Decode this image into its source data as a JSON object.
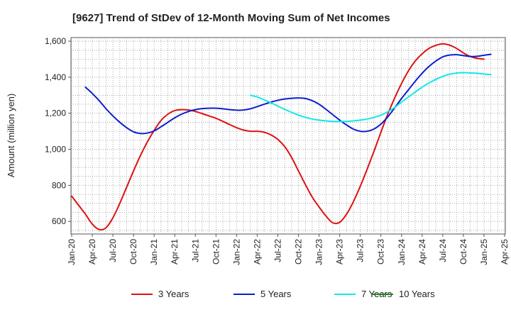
{
  "chart_data": {
    "type": "line",
    "title": "[9627]  Trend of StDev of 12-Month Moving Sum of Net Incomes",
    "ylabel": "Amount (million yen)",
    "xlabel": "",
    "ylim": [
      530,
      1620
    ],
    "yticks": [
      600,
      800,
      1000,
      1200,
      1400,
      1600
    ],
    "ytick_labels": [
      "600",
      "800",
      "1,000",
      "1,200",
      "1,400",
      "1,600"
    ],
    "xticks": [
      "Jan-20",
      "Apr-20",
      "Jul-20",
      "Oct-20",
      "Jan-21",
      "Apr-21",
      "Jul-21",
      "Oct-21",
      "Jan-22",
      "Apr-22",
      "Jul-22",
      "Oct-22",
      "Jan-23",
      "Apr-23",
      "Jul-23",
      "Oct-23",
      "Jan-24",
      "Apr-24",
      "Jul-24",
      "Oct-24",
      "Jan-25",
      "Apr-25"
    ],
    "grid": true,
    "legend_position": "bottom",
    "series": [
      {
        "name": "3 Years",
        "color": "#dd1111",
        "points": [
          [
            "2020-01",
            740
          ],
          [
            "2020-02",
            690
          ],
          [
            "2020-03",
            640
          ],
          [
            "2020-04",
            585
          ],
          [
            "2020-05",
            555
          ],
          [
            "2020-06",
            565
          ],
          [
            "2020-07",
            620
          ],
          [
            "2020-08",
            700
          ],
          [
            "2020-09",
            790
          ],
          [
            "2020-10",
            880
          ],
          [
            "2020-11",
            965
          ],
          [
            "2020-12",
            1040
          ],
          [
            "2021-01",
            1105
          ],
          [
            "2021-02",
            1160
          ],
          [
            "2021-03",
            1195
          ],
          [
            "2021-04",
            1215
          ],
          [
            "2021-05",
            1220
          ],
          [
            "2021-06",
            1218
          ],
          [
            "2021-07",
            1210
          ],
          [
            "2021-08",
            1198
          ],
          [
            "2021-09",
            1185
          ],
          [
            "2021-10",
            1172
          ],
          [
            "2021-11",
            1155
          ],
          [
            "2021-12",
            1137
          ],
          [
            "2022-01",
            1120
          ],
          [
            "2022-02",
            1107
          ],
          [
            "2022-03",
            1100
          ],
          [
            "2022-04",
            1100
          ],
          [
            "2022-05",
            1095
          ],
          [
            "2022-06",
            1080
          ],
          [
            "2022-07",
            1055
          ],
          [
            "2022-08",
            1015
          ],
          [
            "2022-09",
            955
          ],
          [
            "2022-10",
            880
          ],
          [
            "2022-11",
            805
          ],
          [
            "2022-12",
            735
          ],
          [
            "2023-01",
            680
          ],
          [
            "2023-02",
            630
          ],
          [
            "2023-03",
            592
          ],
          [
            "2023-04",
            595
          ],
          [
            "2023-05",
            640
          ],
          [
            "2023-06",
            710
          ],
          [
            "2023-07",
            795
          ],
          [
            "2023-08",
            890
          ],
          [
            "2023-09",
            990
          ],
          [
            "2023-10",
            1095
          ],
          [
            "2023-11",
            1195
          ],
          [
            "2023-12",
            1285
          ],
          [
            "2024-01",
            1365
          ],
          [
            "2024-02",
            1435
          ],
          [
            "2024-03",
            1490
          ],
          [
            "2024-04",
            1530
          ],
          [
            "2024-05",
            1560
          ],
          [
            "2024-06",
            1577
          ],
          [
            "2024-07",
            1585
          ],
          [
            "2024-08",
            1578
          ],
          [
            "2024-09",
            1560
          ],
          [
            "2024-10",
            1535
          ],
          [
            "2024-11",
            1515
          ],
          [
            "2024-12",
            1505
          ],
          [
            "2025-01",
            1500
          ]
        ]
      },
      {
        "name": "5 Years",
        "color": "#0b1fcc",
        "points": [
          [
            "2020-03",
            1345
          ],
          [
            "2020-04",
            1310
          ],
          [
            "2020-05",
            1270
          ],
          [
            "2020-06",
            1225
          ],
          [
            "2020-07",
            1185
          ],
          [
            "2020-08",
            1150
          ],
          [
            "2020-09",
            1120
          ],
          [
            "2020-10",
            1097
          ],
          [
            "2020-11",
            1088
          ],
          [
            "2020-12",
            1090
          ],
          [
            "2021-01",
            1102
          ],
          [
            "2021-02",
            1125
          ],
          [
            "2021-03",
            1150
          ],
          [
            "2021-04",
            1175
          ],
          [
            "2021-05",
            1195
          ],
          [
            "2021-06",
            1210
          ],
          [
            "2021-07",
            1220
          ],
          [
            "2021-08",
            1226
          ],
          [
            "2021-09",
            1228
          ],
          [
            "2021-10",
            1228
          ],
          [
            "2021-11",
            1225
          ],
          [
            "2021-12",
            1220
          ],
          [
            "2022-01",
            1217
          ],
          [
            "2022-02",
            1218
          ],
          [
            "2022-03",
            1225
          ],
          [
            "2022-04",
            1237
          ],
          [
            "2022-05",
            1250
          ],
          [
            "2022-06",
            1262
          ],
          [
            "2022-07",
            1272
          ],
          [
            "2022-08",
            1279
          ],
          [
            "2022-09",
            1283
          ],
          [
            "2022-10",
            1285
          ],
          [
            "2022-11",
            1282
          ],
          [
            "2022-12",
            1270
          ],
          [
            "2023-01",
            1250
          ],
          [
            "2023-02",
            1222
          ],
          [
            "2023-03",
            1192
          ],
          [
            "2023-04",
            1162
          ],
          [
            "2023-05",
            1135
          ],
          [
            "2023-06",
            1112
          ],
          [
            "2023-07",
            1100
          ],
          [
            "2023-08",
            1100
          ],
          [
            "2023-09",
            1113
          ],
          [
            "2023-10",
            1140
          ],
          [
            "2023-11",
            1180
          ],
          [
            "2023-12",
            1230
          ],
          [
            "2024-01",
            1282
          ],
          [
            "2024-02",
            1330
          ],
          [
            "2024-03",
            1378
          ],
          [
            "2024-04",
            1422
          ],
          [
            "2024-05",
            1460
          ],
          [
            "2024-06",
            1490
          ],
          [
            "2024-07",
            1513
          ],
          [
            "2024-08",
            1523
          ],
          [
            "2024-09",
            1525
          ],
          [
            "2024-10",
            1520
          ],
          [
            "2024-11",
            1515
          ],
          [
            "2024-12",
            1516
          ],
          [
            "2025-01",
            1522
          ],
          [
            "2025-02",
            1527
          ]
        ]
      },
      {
        "name": "7 Years",
        "color": "#11e8e8",
        "points": [
          [
            "2022-03",
            1300
          ],
          [
            "2022-04",
            1290
          ],
          [
            "2022-05",
            1275
          ],
          [
            "2022-06",
            1258
          ],
          [
            "2022-07",
            1240
          ],
          [
            "2022-08",
            1222
          ],
          [
            "2022-09",
            1205
          ],
          [
            "2022-10",
            1190
          ],
          [
            "2022-11",
            1178
          ],
          [
            "2022-12",
            1168
          ],
          [
            "2023-01",
            1162
          ],
          [
            "2023-02",
            1158
          ],
          [
            "2023-03",
            1155
          ],
          [
            "2023-04",
            1154
          ],
          [
            "2023-05",
            1155
          ],
          [
            "2023-06",
            1158
          ],
          [
            "2023-07",
            1162
          ],
          [
            "2023-08",
            1168
          ],
          [
            "2023-09",
            1177
          ],
          [
            "2023-10",
            1190
          ],
          [
            "2023-11",
            1208
          ],
          [
            "2023-12",
            1232
          ],
          [
            "2024-01",
            1262
          ],
          [
            "2024-02",
            1290
          ],
          [
            "2024-03",
            1318
          ],
          [
            "2024-04",
            1345
          ],
          [
            "2024-05",
            1368
          ],
          [
            "2024-06",
            1388
          ],
          [
            "2024-07",
            1405
          ],
          [
            "2024-08",
            1417
          ],
          [
            "2024-09",
            1423
          ],
          [
            "2024-10",
            1425
          ],
          [
            "2024-11",
            1424
          ],
          [
            "2024-12",
            1422
          ],
          [
            "2025-01",
            1418
          ],
          [
            "2025-02",
            1415
          ]
        ]
      },
      {
        "name": "10 Years",
        "color": "#1a8a1a",
        "points": []
      }
    ]
  }
}
